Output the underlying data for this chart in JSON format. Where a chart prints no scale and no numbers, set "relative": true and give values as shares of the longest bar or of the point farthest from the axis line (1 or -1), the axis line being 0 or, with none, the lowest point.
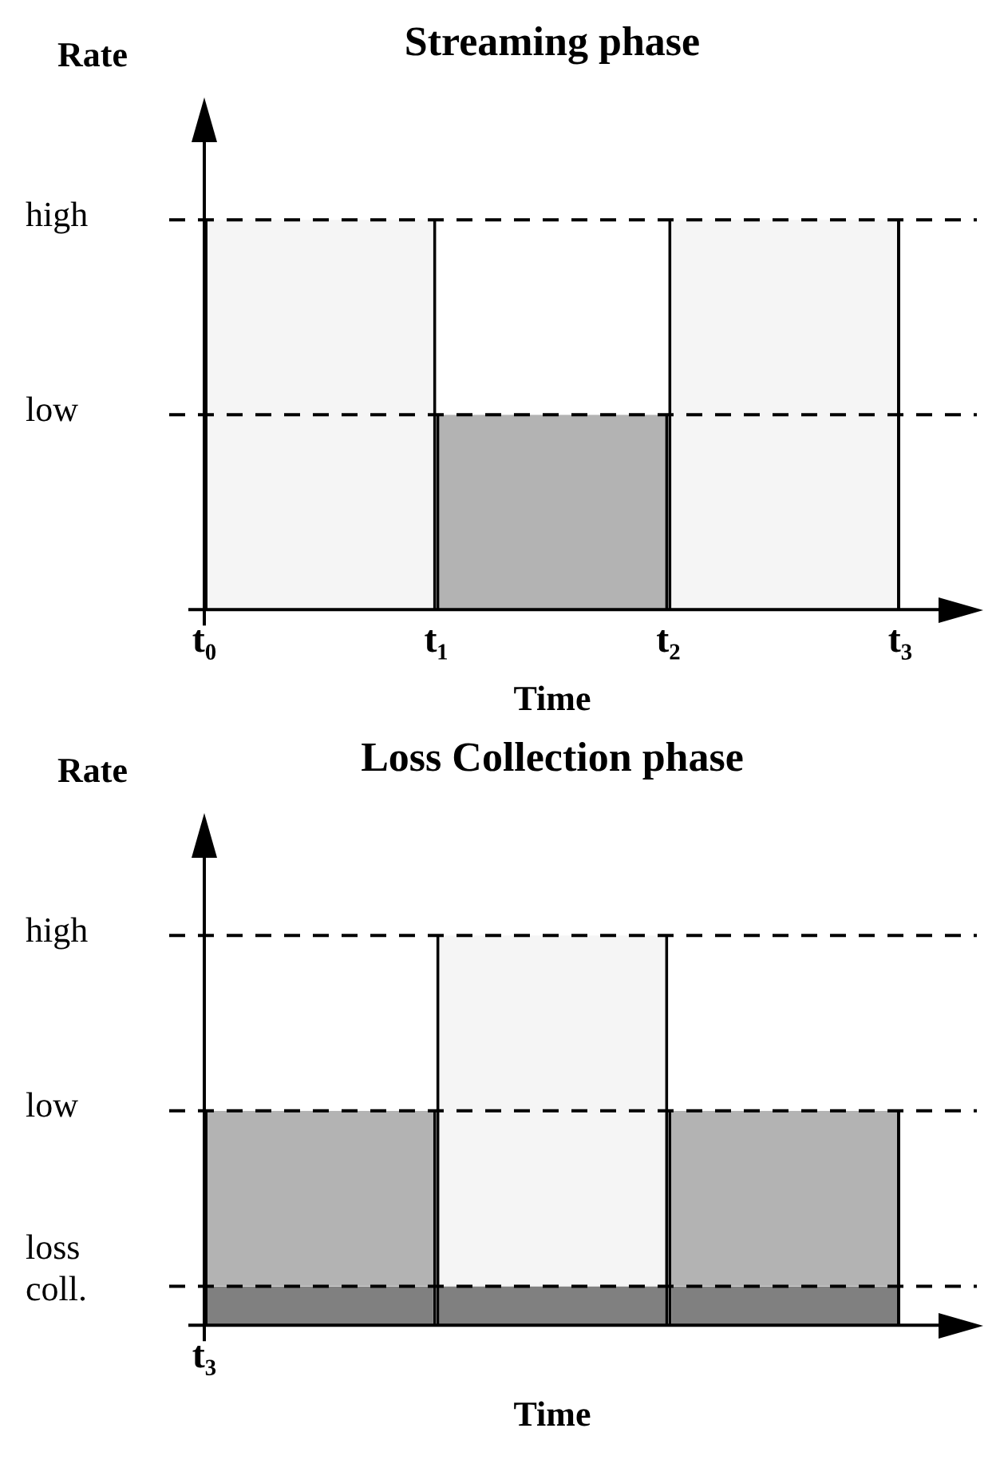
{
  "chart_data": [
    {
      "type": "bar",
      "title": "Streaming phase",
      "xlabel": "Time",
      "ylabel": "Rate",
      "relative": true,
      "categories": [
        null,
        null,
        null
      ],
      "annotations": [
        "t₀",
        "t₁",
        "t₂",
        "t₃"
      ],
      "series": [
        {
          "colors": [
            "#f5f5f5",
            "#b3b3b3",
            "#f5f5f5"
          ],
          "values": [
            1,
            0.5,
            1
          ]
        }
      ],
      "ref_lines": [
        {
          "axis": "y",
          "value": 1,
          "label": "high",
          "line_style": "dashed"
        },
        {
          "axis": "y",
          "value": 0.5,
          "label": "low",
          "line_style": "dashed"
        }
      ]
    },
    {
      "type": "bar",
      "title": "Loss Collection phase",
      "xlabel": "Time",
      "ylabel": "Rate",
      "relative": true,
      "stacked": true,
      "categories": [
        null,
        null,
        null
      ],
      "annotations": [
        "t₃"
      ],
      "series": [
        {
          "colors": [
            "#808080",
            "#808080",
            "#808080"
          ],
          "values": [
            0.1,
            0.1,
            0.1
          ]
        },
        {
          "colors": [
            "#b3b3b3",
            "#f5f5f5",
            "#b3b3b3"
          ],
          "values": [
            0.45,
            0.9,
            0.45
          ]
        }
      ],
      "ref_lines": [
        {
          "axis": "y",
          "value": 1,
          "label": "high",
          "line_style": "dashed"
        },
        {
          "axis": "y",
          "value": 0.55,
          "label": "low",
          "line_style": "dashed"
        },
        {
          "axis": "y",
          "value": 0.1,
          "label": "loss coll.",
          "line_style": "dashed"
        }
      ]
    }
  ]
}
